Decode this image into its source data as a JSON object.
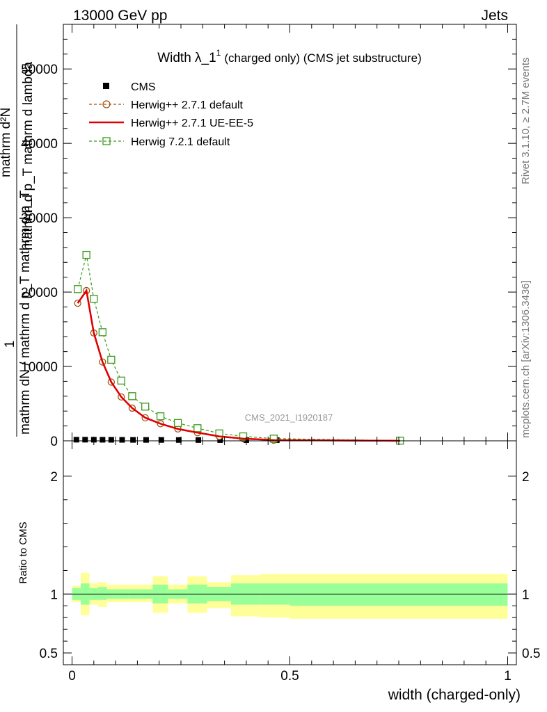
{
  "header": {
    "left": "13000 GeV pp",
    "right": "Jets"
  },
  "side_labels": {
    "rivet": "Rivet 3.1.10, ≥ 2.7M events",
    "mcplots": "mcplots.cern.ch [arXiv:1306.3436]"
  },
  "watermark": "CMS_2021_I1920187",
  "chart_data": [
    {
      "type": "line",
      "title_main": "Width λ_1",
      "title_sup": "1",
      "title_suffix": "(charged only) (CMS jet substructure)",
      "ylabel_lines": [
        "1",
        "mathrm dN / mathrm d p_T mathrm d p_T",
        "mathrm d²N",
        "mathrm d p_T mathrm d lambda"
      ],
      "ylim": [
        0,
        56000
      ],
      "y_ticks": [
        {
          "v": 0,
          "label": "0"
        },
        {
          "v": 10000,
          "label": "10000"
        },
        {
          "v": 20000,
          "label": "20000"
        },
        {
          "v": 30000,
          "label": "30000"
        },
        {
          "v": 40000,
          "label": "40000"
        },
        {
          "v": 50000,
          "label": "50000"
        }
      ],
      "xlim": [
        -0.02,
        1.02
      ],
      "legend": {
        "placement": "top-left",
        "entries": [
          "CMS",
          "Herwig++ 2.7.1 default",
          "Herwig++ 2.7.1 UE-EE-5",
          "Herwig 7.2.1 default"
        ]
      },
      "colors": {
        "cms": "#000000",
        "herwigpp_default": "#a05010",
        "herwigpp_ueee5": "#e00000",
        "herwig7": "#3a9a1a"
      },
      "series": [
        {
          "name": "CMS",
          "style": "square",
          "x": [
            0.01,
            0.03,
            0.05,
            0.07,
            0.09,
            0.115,
            0.14,
            0.17,
            0.205,
            0.245,
            0.29,
            0.34,
            0.4,
            0.47,
            0.75
          ],
          "values": [
            60,
            60,
            55,
            50,
            45,
            40,
            35,
            30,
            25,
            20,
            15,
            10,
            6,
            3,
            0
          ]
        },
        {
          "name": "Herwig++ 2.7.1 default",
          "style": "circle-dashed",
          "x": [
            0.013,
            0.033,
            0.05,
            0.07,
            0.09,
            0.113,
            0.138,
            0.168,
            0.203,
            0.243,
            0.288,
            0.338,
            0.393,
            0.463,
            0.753
          ],
          "values": [
            18500,
            20200,
            14500,
            10600,
            7900,
            5900,
            4400,
            3100,
            2300,
            1600,
            1100,
            600,
            300,
            100,
            5
          ]
        },
        {
          "name": "Herwig++ 2.7.1 UE-EE-5",
          "style": "line",
          "x": [
            0.013,
            0.033,
            0.05,
            0.07,
            0.09,
            0.113,
            0.138,
            0.168,
            0.203,
            0.243,
            0.288,
            0.338,
            0.393,
            0.463,
            0.753
          ],
          "values": [
            18500,
            20200,
            14500,
            10600,
            7900,
            5900,
            4400,
            3100,
            2300,
            1600,
            1100,
            600,
            300,
            100,
            5
          ]
        },
        {
          "name": "Herwig 7.2.1 default",
          "style": "open-square-dashed",
          "x": [
            0.013,
            0.033,
            0.05,
            0.07,
            0.09,
            0.113,
            0.138,
            0.168,
            0.203,
            0.243,
            0.288,
            0.338,
            0.393,
            0.463,
            0.753
          ],
          "values": [
            20400,
            25000,
            19100,
            14600,
            10900,
            8100,
            6000,
            4600,
            3300,
            2400,
            1700,
            1000,
            600,
            300,
            20
          ]
        }
      ]
    },
    {
      "type": "area",
      "ylabel": "Ratio to CMS",
      "xlabel": "width (charged-only)",
      "ylim": [
        0.4,
        2.3
      ],
      "xlim": [
        -0.02,
        1.02
      ],
      "y_ticks": [
        {
          "v": 0.5,
          "label": "0.5"
        },
        {
          "v": 1,
          "label": "1"
        },
        {
          "v": 2,
          "label": "2"
        }
      ],
      "x_ticks": [
        {
          "v": 0,
          "label": "0"
        },
        {
          "v": 0.5,
          "label": "0.5"
        },
        {
          "v": 1,
          "label": "1"
        }
      ],
      "reference": 1,
      "band_colors": {
        "inner": "#99ff99",
        "outer": "#ffff99"
      },
      "bins": [
        {
          "x0": 0.0,
          "x1": 0.02,
          "inner": [
            0.95,
            1.05
          ],
          "outer": [
            0.93,
            1.07
          ]
        },
        {
          "x0": 0.02,
          "x1": 0.04,
          "inner": [
            0.91,
            1.09
          ],
          "outer": [
            0.82,
            1.18
          ]
        },
        {
          "x0": 0.04,
          "x1": 0.06,
          "inner": [
            0.95,
            1.05
          ],
          "outer": [
            0.91,
            1.09
          ]
        },
        {
          "x0": 0.06,
          "x1": 0.08,
          "inner": [
            0.95,
            1.06
          ],
          "outer": [
            0.89,
            1.1
          ]
        },
        {
          "x0": 0.08,
          "x1": 0.1,
          "inner": [
            0.96,
            1.04
          ],
          "outer": [
            0.93,
            1.08
          ]
        },
        {
          "x0": 0.1,
          "x1": 0.13,
          "inner": [
            0.96,
            1.04
          ],
          "outer": [
            0.93,
            1.08
          ]
        },
        {
          "x0": 0.13,
          "x1": 0.15,
          "inner": [
            0.96,
            1.04
          ],
          "outer": [
            0.93,
            1.08
          ]
        },
        {
          "x0": 0.15,
          "x1": 0.185,
          "inner": [
            0.96,
            1.04
          ],
          "outer": [
            0.93,
            1.08
          ]
        },
        {
          "x0": 0.185,
          "x1": 0.22,
          "inner": [
            0.92,
            1.08
          ],
          "outer": [
            0.84,
            1.15
          ]
        },
        {
          "x0": 0.22,
          "x1": 0.265,
          "inner": [
            0.96,
            1.04
          ],
          "outer": [
            0.92,
            1.08
          ]
        },
        {
          "x0": 0.265,
          "x1": 0.31,
          "inner": [
            0.92,
            1.08
          ],
          "outer": [
            0.84,
            1.15
          ]
        },
        {
          "x0": 0.31,
          "x1": 0.365,
          "inner": [
            0.94,
            1.06
          ],
          "outer": [
            0.88,
            1.1
          ]
        },
        {
          "x0": 0.365,
          "x1": 0.43,
          "inner": [
            0.91,
            1.09
          ],
          "outer": [
            0.81,
            1.16
          ]
        },
        {
          "x0": 0.43,
          "x1": 0.5,
          "inner": [
            0.91,
            1.09
          ],
          "outer": [
            0.8,
            1.17
          ]
        },
        {
          "x0": 0.5,
          "x1": 1.0,
          "inner": [
            0.9,
            1.09
          ],
          "outer": [
            0.79,
            1.17
          ]
        }
      ]
    }
  ]
}
